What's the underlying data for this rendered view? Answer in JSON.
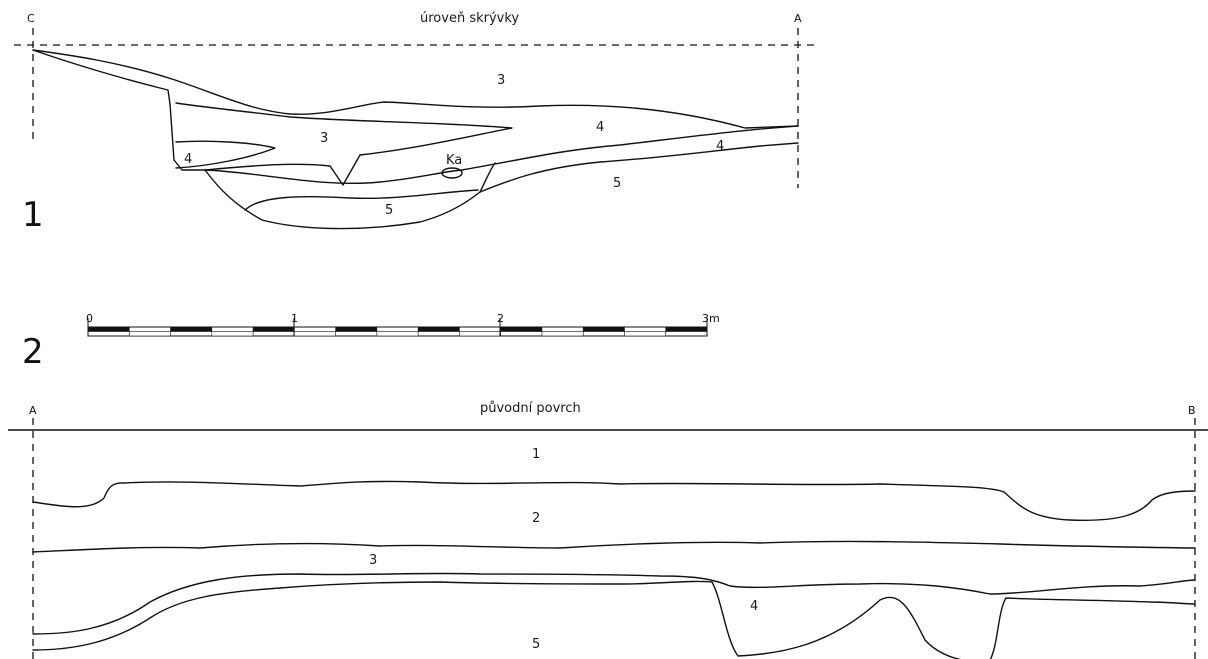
{
  "section1": {
    "figure_number": "1",
    "reference_level": "úroveň skrývky",
    "endpoint_left": "C",
    "endpoint_right": "A",
    "layers": [
      "3",
      "3",
      "4",
      "4",
      "4",
      "5",
      "5"
    ],
    "feature_label": "Ka"
  },
  "scale": {
    "figure_number": "2",
    "ticks": [
      "0",
      "1",
      "2",
      "3m"
    ]
  },
  "section2": {
    "reference_level": "původní povrch",
    "endpoint_left": "A",
    "endpoint_right": "B",
    "layers": [
      "1",
      "2",
      "3",
      "4",
      "5"
    ]
  }
}
